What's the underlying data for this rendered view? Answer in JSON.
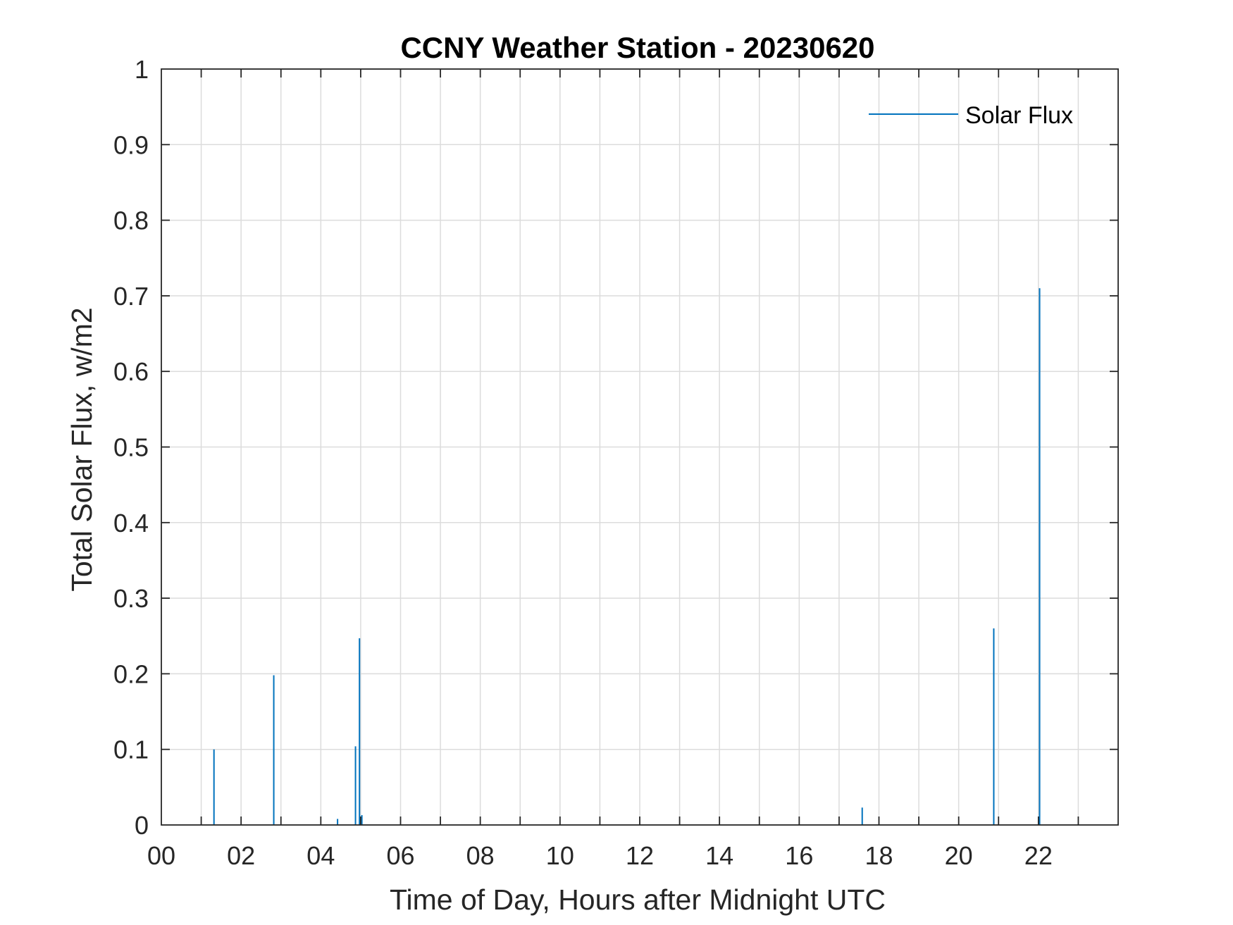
{
  "chart_data": {
    "type": "line",
    "title": "CCNY Weather Station - 20230620",
    "xlabel": "Time of Day, Hours after Midnight UTC",
    "ylabel": "Total Solar Flux, w/m2",
    "xlim": [
      0,
      24
    ],
    "ylim": [
      0,
      1
    ],
    "grid": true,
    "legend_position": "top-right",
    "xticks": [
      0,
      2,
      4,
      6,
      8,
      10,
      12,
      14,
      16,
      18,
      20,
      22
    ],
    "xtick_labels": [
      "00",
      "02",
      "04",
      "06",
      "08",
      "10",
      "12",
      "14",
      "16",
      "18",
      "20",
      "22"
    ],
    "x_minor_grid": [
      1,
      3,
      5,
      7,
      9,
      11,
      13,
      15,
      17,
      19,
      21,
      23
    ],
    "yticks": [
      0,
      0.1,
      0.2,
      0.3,
      0.4,
      0.5,
      0.6,
      0.7,
      0.8,
      0.9,
      1
    ],
    "ytick_labels": [
      "0",
      "0.1",
      "0.2",
      "0.3",
      "0.4",
      "0.5",
      "0.6",
      "0.7",
      "0.8",
      "0.9",
      "1"
    ],
    "series": [
      {
        "name": "Solar Flux",
        "color": "#0072BD",
        "spikes": [
          {
            "x": 1.32,
            "y": 0.1
          },
          {
            "x": 2.82,
            "y": 0.198
          },
          {
            "x": 4.42,
            "y": 0.008
          },
          {
            "x": 4.87,
            "y": 0.104
          },
          {
            "x": 4.97,
            "y": 0.247
          },
          {
            "x": 5.03,
            "y": 0.013
          },
          {
            "x": 17.58,
            "y": 0.023
          },
          {
            "x": 20.88,
            "y": 0.26
          },
          {
            "x": 22.03,
            "y": 0.71
          }
        ]
      }
    ]
  }
}
